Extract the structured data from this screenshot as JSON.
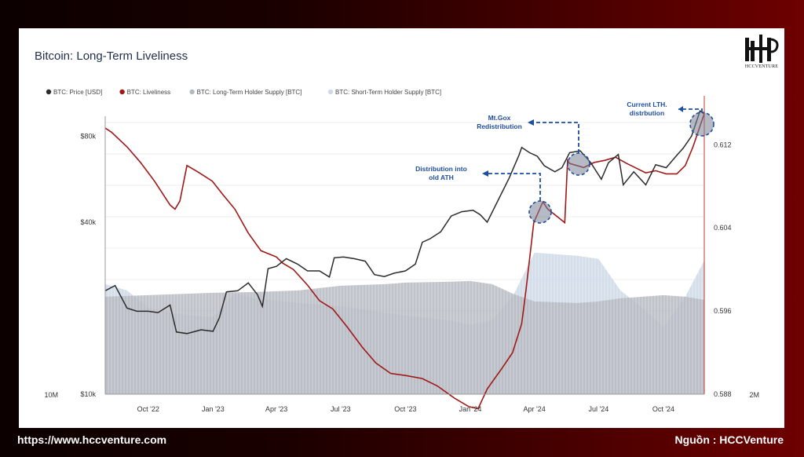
{
  "footer": {
    "url": "https://www.hccventure.com",
    "source": "Nguồn : HCCVenture"
  },
  "logo": {
    "text": "HCCVENTURE"
  },
  "colors": {
    "price": "#2b2b2b",
    "liveliness": "#a01818",
    "lth_supply": "#b5b8c0",
    "sth_supply": "#cfdae8",
    "annotation": "#1f4e9c"
  },
  "chart_data": {
    "type": "line",
    "title": "Bitcoin: Long-Term Liveliness",
    "legend": [
      {
        "name": "BTC: Price [USD]",
        "color": "#2b2b2b"
      },
      {
        "name": "BTC: Liveliness",
        "color": "#a01818"
      },
      {
        "name": "BTC: Long-Term Holder Supply [BTC]",
        "color": "#b5b8c0"
      },
      {
        "name": "BTC: Short-Term Holder Supply [BTC]",
        "color": "#cfdae8"
      }
    ],
    "legend_position": "top-left",
    "x_ticks": [
      "Oct '22",
      "Jan '23",
      "Apr '23",
      "Jul '23",
      "Oct '23",
      "Jan '24",
      "Apr '24",
      "Jul '24",
      "Oct '24"
    ],
    "price_axis": {
      "ticks": [
        "$80k",
        "$40k",
        "$10k"
      ],
      "scale": "log",
      "range": [
        10000,
        100000
      ]
    },
    "liveliness_axis": {
      "ticks": [
        "0.612",
        "0.604",
        "0.596",
        "0.588"
      ],
      "range": [
        0.588,
        0.6155
      ]
    },
    "supply_axis": {
      "ticks": [
        "10M",
        "2M"
      ]
    },
    "grid": true,
    "annotations": [
      {
        "label": [
          "Current LTH.",
          "distrbution"
        ]
      },
      {
        "label": [
          "Mt.Gox",
          "Redistribution"
        ]
      },
      {
        "label": [
          "Distribution into",
          "old ATH"
        ]
      }
    ],
    "series": [
      {
        "name": "BTC: Price [USD]",
        "x": [
          "2022-08-01",
          "2022-08-15",
          "2022-09-01",
          "2022-09-15",
          "2022-10-01",
          "2022-10-15",
          "2022-11-01",
          "2022-11-10",
          "2022-11-25",
          "2022-12-15",
          "2023-01-01",
          "2023-01-10",
          "2023-01-20",
          "2023-02-05",
          "2023-02-20",
          "2023-03-05",
          "2023-03-12",
          "2023-03-20",
          "2023-04-01",
          "2023-04-15",
          "2023-05-01",
          "2023-05-15",
          "2023-06-01",
          "2023-06-15",
          "2023-06-22",
          "2023-07-05",
          "2023-07-20",
          "2023-08-05",
          "2023-08-18",
          "2023-09-01",
          "2023-09-15",
          "2023-10-01",
          "2023-10-15",
          "2023-10-25",
          "2023-11-05",
          "2023-11-20",
          "2023-12-05",
          "2023-12-20",
          "2024-01-05",
          "2024-01-15",
          "2024-01-25",
          "2024-02-10",
          "2024-02-25",
          "2024-03-10",
          "2024-03-14",
          "2024-03-25",
          "2024-04-05",
          "2024-04-15",
          "2024-04-30",
          "2024-05-10",
          "2024-05-21",
          "2024-06-05",
          "2024-06-20",
          "2024-07-05",
          "2024-07-15",
          "2024-07-29",
          "2024-08-05",
          "2024-08-20",
          "2024-09-06",
          "2024-09-20",
          "2024-10-05",
          "2024-10-20",
          "2024-10-29",
          "2024-11-10",
          "2024-11-22",
          "2024-11-28"
        ],
        "values": [
          23000,
          24000,
          20000,
          19500,
          19500,
          19300,
          20500,
          16500,
          16300,
          16800,
          16600,
          18500,
          22800,
          23000,
          24500,
          22300,
          20300,
          27500,
          28000,
          29800,
          28500,
          27000,
          27000,
          25700,
          30000,
          30200,
          29800,
          29200,
          26200,
          25800,
          26500,
          27000,
          28500,
          34000,
          35000,
          37000,
          42000,
          43500,
          44000,
          42500,
          40000,
          48000,
          57000,
          68500,
          73000,
          70000,
          68000,
          63000,
          60000,
          62000,
          70000,
          71000,
          64500,
          56500,
          64500,
          69000,
          54000,
          60000,
          54000,
          63500,
          62000,
          68500,
          72500,
          80000,
          98000,
          95500
        ]
      },
      {
        "name": "BTC: Liveliness",
        "x": [
          "2022-08-01",
          "2022-08-10",
          "2022-09-01",
          "2022-09-20",
          "2022-10-10",
          "2022-11-01",
          "2022-11-08",
          "2022-11-15",
          "2022-11-25",
          "2022-12-10",
          "2022-12-31",
          "2023-01-15",
          "2023-02-01",
          "2023-02-20",
          "2023-03-10",
          "2023-04-01",
          "2023-04-10",
          "2023-04-25",
          "2023-05-15",
          "2023-06-01",
          "2023-06-20",
          "2023-07-10",
          "2023-08-01",
          "2023-08-20",
          "2023-09-10",
          "2023-10-01",
          "2023-10-25",
          "2023-11-15",
          "2023-12-10",
          "2023-12-30",
          "2024-01-12",
          "2024-01-25",
          "2024-02-15",
          "2024-03-01",
          "2024-03-14",
          "2024-03-20",
          "2024-03-31",
          "2024-04-13",
          "2024-04-20",
          "2024-05-05",
          "2024-05-14",
          "2024-05-18",
          "2024-05-21",
          "2024-06-10",
          "2024-06-25",
          "2024-07-10",
          "2024-07-25",
          "2024-08-10",
          "2024-08-25",
          "2024-09-06",
          "2024-09-20",
          "2024-10-05",
          "2024-10-20",
          "2024-11-01",
          "2024-11-12",
          "2024-11-28"
        ],
        "values": [
          0.6136,
          0.6132,
          0.6118,
          0.6103,
          0.6085,
          0.6062,
          0.6058,
          0.6066,
          0.61,
          0.6094,
          0.6085,
          0.6072,
          0.6058,
          0.6035,
          0.6018,
          0.6012,
          0.6006,
          0.6,
          0.5985,
          0.597,
          0.5962,
          0.5945,
          0.5925,
          0.591,
          0.59,
          0.5898,
          0.5895,
          0.5888,
          0.5876,
          0.5868,
          0.5866,
          0.5885,
          0.5905,
          0.592,
          0.5948,
          0.598,
          0.6045,
          0.6065,
          0.6058,
          0.605,
          0.6045,
          0.6105,
          0.6102,
          0.6098,
          0.6103,
          0.6105,
          0.6108,
          0.6102,
          0.6097,
          0.6093,
          0.6095,
          0.6092,
          0.6092,
          0.61,
          0.6118,
          0.615
        ]
      },
      {
        "name": "BTC: Long-Term Holder Supply [BTC]",
        "x": [
          "2022-08",
          "2022-10",
          "2022-12",
          "2023-01",
          "2023-03",
          "2023-05",
          "2023-07",
          "2023-09",
          "2023-10",
          "2023-12",
          "2024-01",
          "2024-02",
          "2024-03",
          "2024-04",
          "2024-06",
          "2024-07",
          "2024-08",
          "2024-09",
          "2024-10",
          "2024-11",
          "2024-11-28"
        ],
        "values": [
          0.62,
          0.63,
          0.64,
          0.645,
          0.65,
          0.66,
          0.69,
          0.7,
          0.71,
          0.715,
          0.72,
          0.7,
          0.64,
          0.59,
          0.58,
          0.59,
          0.61,
          0.62,
          0.63,
          0.62,
          0.6
        ]
      },
      {
        "name": "BTC: Short-Term Holder Supply [BTC]",
        "x": [
          "2022-08",
          "2022-09",
          "2022-10",
          "2022-11",
          "2022-12",
          "2023-01",
          "2023-02",
          "2023-03",
          "2023-05",
          "2023-07",
          "2023-09",
          "2023-10",
          "2023-12",
          "2024-01",
          "2024-02",
          "2024-03",
          "2024-04",
          "2024-06",
          "2024-07",
          "2024-08",
          "2024-09",
          "2024-10",
          "2024-11",
          "2024-11-28"
        ],
        "values": [
          0.7,
          0.66,
          0.55,
          0.52,
          0.5,
          0.49,
          0.64,
          0.61,
          0.58,
          0.56,
          0.52,
          0.5,
          0.47,
          0.44,
          0.47,
          0.62,
          0.9,
          0.88,
          0.86,
          0.66,
          0.55,
          0.43,
          0.62,
          0.85
        ]
      }
    ]
  }
}
